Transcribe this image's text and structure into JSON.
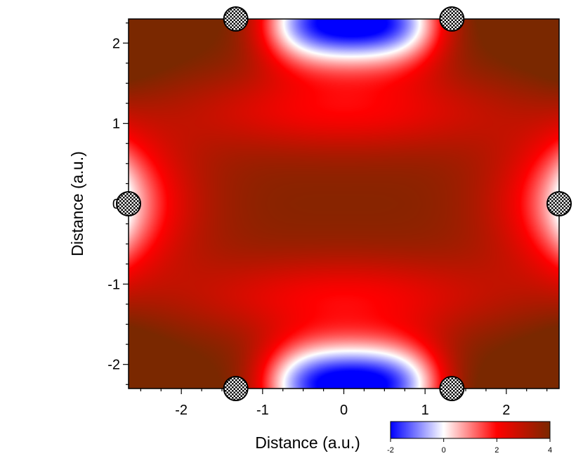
{
  "chart_data": {
    "type": "heatmap",
    "title": "",
    "xlabel": "Distance (a.u.)",
    "ylabel": "Distance (a.u.)",
    "xlim": [
      -2.65,
      2.65
    ],
    "ylim": [
      -2.3,
      2.3
    ],
    "x_ticks": [
      -2,
      -1,
      0,
      1,
      2
    ],
    "y_ticks": [
      2,
      1,
      0,
      -1,
      -2
    ],
    "x_tick_labels": [
      "-2",
      "-1",
      "0",
      "1",
      "2"
    ],
    "y_tick_labels": [
      "2",
      "1",
      "0",
      "-1",
      "-2"
    ],
    "grid": false,
    "field_values": {
      "center": [
        0,
        0,
        3.8
      ],
      "low_regions": [
        {
          "x": 0.1,
          "y": 2.25,
          "value": -2
        },
        {
          "x": 0.1,
          "y": -2.25,
          "value": -2
        }
      ],
      "saddle_regions": [
        {
          "x": -2.65,
          "y": 0,
          "value": 0
        },
        {
          "x": 2.65,
          "y": 0,
          "value": 0
        }
      ],
      "corner_value": 3.3
    },
    "colorbar": {
      "min": -2,
      "max": 4,
      "ticks": [
        -2,
        0,
        2,
        4
      ],
      "tick_labels": [
        "-2",
        "0",
        "2",
        "4"
      ],
      "colors": [
        {
          "value": -2,
          "color": "#0000ff"
        },
        {
          "value": 0,
          "color": "#ffffff"
        },
        {
          "value": 2,
          "color": "#ff0000"
        },
        {
          "value": 4,
          "color": "#7a2800"
        }
      ]
    },
    "markers": [
      {
        "x": -1.33,
        "y": 2.3
      },
      {
        "x": 1.33,
        "y": 2.3
      },
      {
        "x": -2.65,
        "y": 0
      },
      {
        "x": 2.65,
        "y": 0
      },
      {
        "x": -1.33,
        "y": -2.3
      },
      {
        "x": 1.33,
        "y": -2.3
      }
    ],
    "marker_style": "checkerboard-circle"
  }
}
